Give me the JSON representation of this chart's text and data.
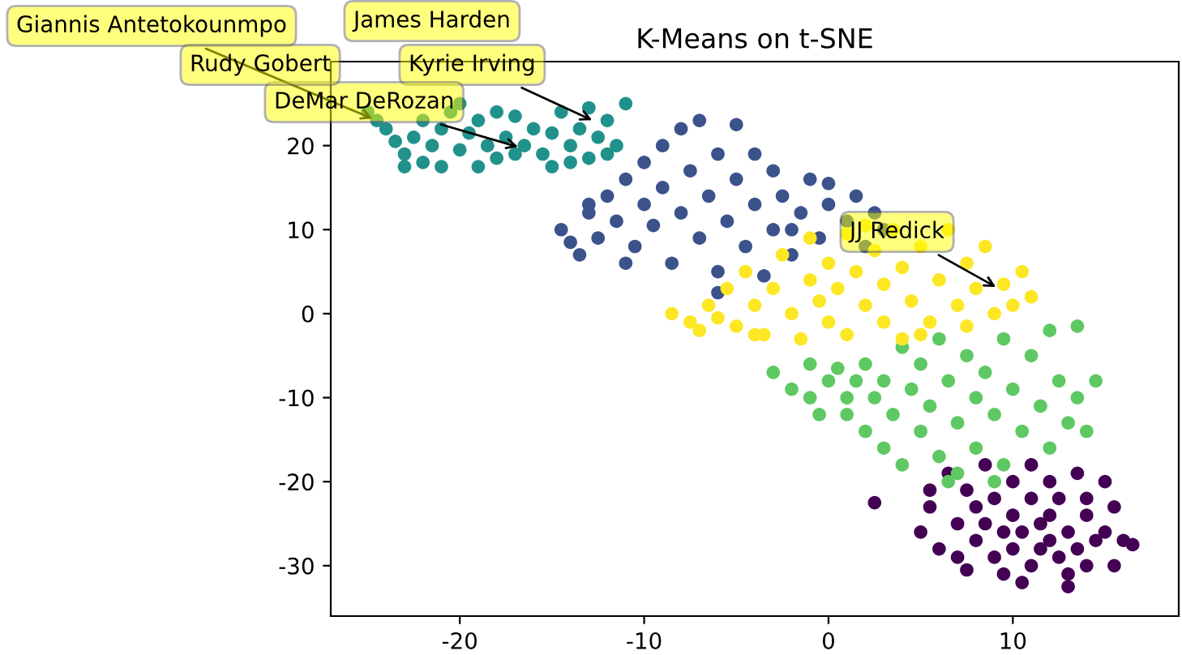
{
  "chart_data": {
    "type": "scatter",
    "title": "K-Means on t-SNE",
    "xlim": [
      -27,
      19
    ],
    "ylim": [
      -36,
      30
    ],
    "xticks": [
      -20,
      -10,
      0,
      10
    ],
    "yticks": [
      -30,
      -20,
      -10,
      0,
      10,
      20
    ],
    "grid": false,
    "marker": "circle",
    "series": [
      {
        "color": "#440154",
        "x": [
          2.5,
          5.5,
          5.5,
          5,
          6,
          6.5,
          7,
          7,
          7.5,
          7.5,
          8,
          8,
          8.5,
          8.5,
          9,
          9,
          9.5,
          9.5,
          10,
          10,
          10,
          10.5,
          10.5,
          11,
          11,
          11,
          11.5,
          11.5,
          12,
          12,
          12,
          12.5,
          12.5,
          13,
          13,
          13.5,
          13.5,
          14,
          14,
          14.5,
          15,
          15,
          15.5,
          15.5,
          16,
          16.5,
          13,
          14
        ],
        "values": [
          -22.5,
          -21,
          -23,
          -26,
          -28,
          -19,
          -25,
          -29,
          -30.5,
          -21,
          -23,
          -27,
          -18,
          -25,
          -29,
          -22,
          -26,
          -31,
          -20,
          -24,
          -28,
          -32,
          -26,
          -18,
          -22,
          -30,
          -25,
          -28,
          -20,
          -27,
          -24,
          -29,
          -22,
          -32.5,
          -26,
          -19,
          -28,
          -24,
          -30,
          -27,
          -20,
          -26,
          -23,
          -30,
          -27,
          -27.5,
          -31,
          -22
        ]
      },
      {
        "color": "#3b528b",
        "x": [
          -14.5,
          -14,
          -13.5,
          -13,
          -12.5,
          -12,
          -11.5,
          -11,
          -10.5,
          -10,
          -10,
          -9.5,
          -9,
          -9,
          -8.5,
          -8,
          -8,
          -7.5,
          -7,
          -7,
          -6.5,
          -6,
          -6,
          -5.5,
          -5,
          -5,
          -4.5,
          -4,
          -4,
          -3.5,
          -3,
          -3,
          -2.5,
          -2,
          -1.5,
          -1,
          -0.5,
          0,
          0,
          1,
          1.5,
          2,
          2.5,
          3,
          -11,
          -6,
          -2,
          -13
        ],
        "values": [
          10,
          8.5,
          7,
          12,
          9,
          14,
          11,
          16,
          8,
          13,
          18,
          10.5,
          15,
          20,
          6,
          12,
          22,
          17,
          9,
          23,
          14,
          19,
          5,
          11,
          22.5,
          16,
          8,
          13,
          19,
          4.5,
          10,
          17,
          14,
          7,
          12,
          16,
          9,
          13,
          15.5,
          11,
          14,
          8,
          12,
          10,
          6,
          2.5,
          10,
          13
        ]
      },
      {
        "color": "#21918c",
        "x": [
          -25,
          -24,
          -23.5,
          -23,
          -22.5,
          -22,
          -21.5,
          -21,
          -20.5,
          -20,
          -19.5,
          -19,
          -18.5,
          -18,
          -17.5,
          -17,
          -16.5,
          -16,
          -15.5,
          -15,
          -14.5,
          -14,
          -13.5,
          -13,
          -12.5,
          -12,
          -11.5,
          -11,
          -23,
          -20,
          -18,
          -15,
          -13,
          -22,
          -24.5,
          -21,
          -17,
          -14,
          -12,
          -19
        ],
        "values": [
          24,
          22,
          20.5,
          19,
          21,
          23,
          20,
          22,
          24,
          19.5,
          21.5,
          23,
          20,
          18.5,
          21,
          23.5,
          20,
          22,
          19,
          21.5,
          24,
          20,
          22,
          18.5,
          21,
          23,
          20,
          25,
          17.5,
          25,
          24,
          17.5,
          24.5,
          18,
          23,
          17.5,
          19,
          18,
          19,
          17.5
        ]
      },
      {
        "color": "#5ec962",
        "x": [
          -3,
          -2,
          -1,
          -1,
          -0.5,
          0,
          0.5,
          1,
          1,
          1.5,
          2,
          2,
          2.5,
          3,
          3,
          3.5,
          4,
          4,
          4.5,
          5,
          5,
          5.5,
          6,
          6,
          6.5,
          7,
          7,
          7.5,
          8,
          8,
          8.5,
          9,
          9.5,
          9.5,
          10,
          10.5,
          11,
          11.5,
          12,
          12,
          12.5,
          13,
          13.5,
          13.5,
          14,
          14.5,
          6.5,
          9
        ],
        "values": [
          -7,
          -9,
          -6,
          -10,
          -12,
          -8,
          -6.5,
          -10,
          -12,
          -8,
          -6,
          -14,
          -10,
          -16,
          -8,
          -12,
          -4,
          -18,
          -9,
          -14,
          -6,
          -11,
          -3,
          -17,
          -8,
          -13,
          -19,
          -5,
          -10,
          -16,
          -7,
          -12,
          -3,
          -18,
          -9,
          -14,
          -5,
          -11,
          -2,
          -16,
          -8,
          -13,
          -1.5,
          -10,
          -14,
          -8,
          -20,
          -20
        ]
      },
      {
        "color": "#fde725",
        "x": [
          -8.5,
          -7.5,
          -7,
          -6.5,
          -6,
          -5.5,
          -5,
          -4.5,
          -4,
          -3.5,
          -3,
          -2.5,
          -2,
          -1.5,
          -1,
          -1,
          -0.5,
          0,
          0,
          0.5,
          1,
          1,
          1.5,
          2,
          2.5,
          3,
          3,
          3.5,
          4,
          4,
          4.5,
          5,
          5.5,
          6,
          6.5,
          7,
          7.5,
          7.5,
          8,
          8.5,
          9,
          9.5,
          10,
          10.5,
          11,
          -4,
          5,
          2
        ],
        "values": [
          0,
          -1,
          -2,
          1,
          -0.5,
          3,
          -1.5,
          5,
          1,
          -2.5,
          3,
          7,
          0,
          -3,
          4,
          9,
          1.5,
          -1,
          6,
          3,
          9.5,
          -2.5,
          5,
          1,
          7.5,
          -1,
          3.5,
          10,
          5.5,
          -3,
          1.5,
          8,
          -1,
          4,
          10,
          1,
          6,
          -1.5,
          3,
          8,
          0,
          3.5,
          1,
          5,
          2,
          -2.5,
          -2.5,
          10.5
        ]
      }
    ],
    "annotations": [
      {
        "text": "Giannis Antetokounmpo",
        "x": -24.5,
        "y": 23
      },
      "James Harden",
      "Rudy Gobert",
      {
        "text": "Kyrie Irving",
        "x": -12.6,
        "y": 22.8
      },
      {
        "text": "DeMar DeRozan",
        "x": -16.6,
        "y": 19.7
      },
      {
        "text": "JJ Redick",
        "x": 9.3,
        "y": 2.9
      }
    ]
  }
}
